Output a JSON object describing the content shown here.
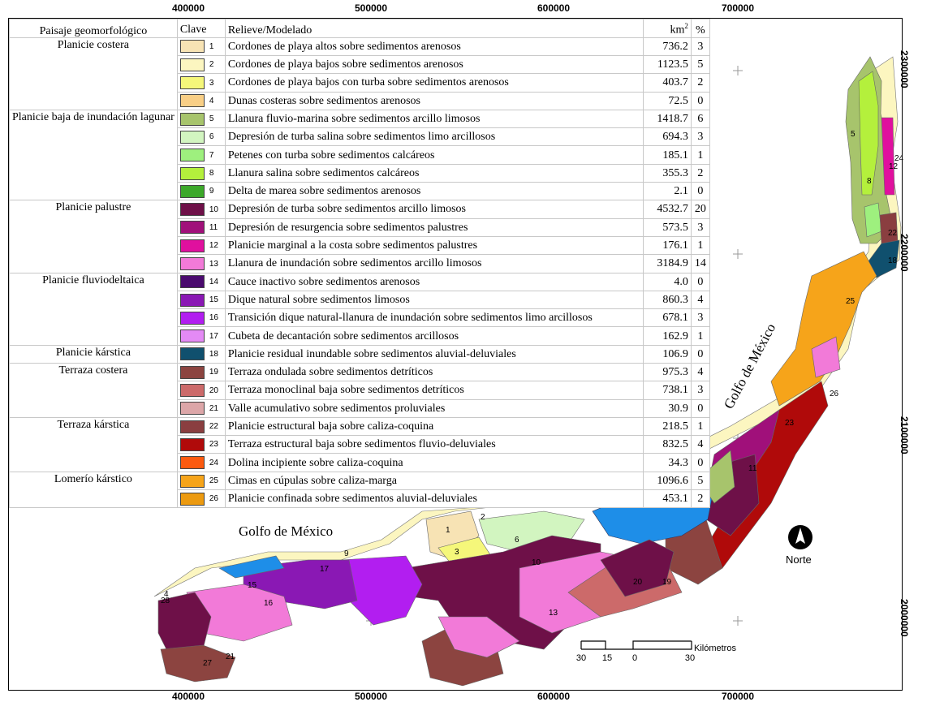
{
  "grid": {
    "x_labels": [
      "400000",
      "500000",
      "600000",
      "700000"
    ],
    "y_labels": [
      "2300000",
      "2200000",
      "2100000",
      "2000000"
    ]
  },
  "legend": {
    "headers": {
      "landscape": "Paisaje geomorfológico",
      "key": "Clave",
      "relief": "Relieve/Modelado",
      "area": "km",
      "area_sup": "2",
      "pct": "%"
    },
    "groups": [
      {
        "name": "Planicie costera",
        "rows": [
          {
            "key": "1",
            "relief": "Cordones de playa altos sobre sedimentos arenosos",
            "km2": "736.2",
            "pct": "3",
            "color": "#f7e3b4"
          },
          {
            "key": "2",
            "relief": "Cordones de playa bajos sobre sedimentos arenosos",
            "km2": "1123.5",
            "pct": "5",
            "color": "#fcf6c0"
          },
          {
            "key": "3",
            "relief": "Cordones de playa bajos con turba sobre sedimentos arenosos",
            "km2": "403.7",
            "pct": "2",
            "color": "#f5f77a"
          },
          {
            "key": "4",
            "relief": "Dunas costeras sobre sedimentos arenosos",
            "km2": "72.5",
            "pct": "0",
            "color": "#f9cf86"
          }
        ]
      },
      {
        "name": "Planicie baja de inundación lagunar",
        "rows": [
          {
            "key": "5",
            "relief": "Llanura fluvio-marina sobre sedimentos arcillo limosos",
            "km2": "1418.7",
            "pct": "6",
            "color": "#a7c46c"
          },
          {
            "key": "6",
            "relief": "Depresión de turba salina sobre sedimentos limo arcillosos",
            "km2": "694.3",
            "pct": "3",
            "color": "#d2f5c0"
          },
          {
            "key": "7",
            "relief": "Petenes con turba sobre sedimentos calcáreos",
            "km2": "185.1",
            "pct": "1",
            "color": "#9ef07e"
          },
          {
            "key": "8",
            "relief": "Llanura salina sobre sedimentos calcáreos",
            "km2": "355.3",
            "pct": "2",
            "color": "#b4f03c"
          },
          {
            "key": "9",
            "relief": "Delta de marea sobre sedimentos arenosos",
            "km2": "2.1",
            "pct": "0",
            "color": "#3ca82a"
          }
        ]
      },
      {
        "name": "Planicie palustre",
        "rows": [
          {
            "key": "10",
            "relief": "Depresión de turba sobre sedimentos arcillo limosos",
            "km2": "4532.7",
            "pct": "20",
            "color": "#6e1048"
          },
          {
            "key": "11",
            "relief": "Depresión de resurgencia sobre sedimentos palustres",
            "km2": "573.5",
            "pct": "3",
            "color": "#a0107a"
          },
          {
            "key": "12",
            "relief": "Planicie marginal a la costa sobre sedimentos palustres",
            "km2": "176.1",
            "pct": "1",
            "color": "#e0109e"
          },
          {
            "key": "13",
            "relief": "Llanura de inundación sobre sedimentos arcillo limosos",
            "km2": "3184.9",
            "pct": "14",
            "color": "#f27ad8"
          }
        ]
      },
      {
        "name": "Planicie fluviodeltaica",
        "rows": [
          {
            "key": "14",
            "relief": "Cauce inactivo sobre sedimentos arenosos",
            "km2": "4.0",
            "pct": "0",
            "color": "#4a0a6e"
          },
          {
            "key": "15",
            "relief": "Dique natural sobre sedimentos limosos",
            "km2": "860.3",
            "pct": "4",
            "color": "#8a18b4"
          },
          {
            "key": "16",
            "relief": "Transición dique natural-llanura de inundación sobre sedimentos limo arcillosos",
            "km2": "678.1",
            "pct": "3",
            "color": "#b21ef0"
          },
          {
            "key": "17",
            "relief": "Cubeta de decantación sobre sedimentos arcillosos",
            "km2": "162.9",
            "pct": "1",
            "color": "#e48af5"
          }
        ]
      },
      {
        "name": "Planicie kárstica",
        "rows": [
          {
            "key": "18",
            "relief": "Planicie residual inundable sobre sedimentos aluvial-deluviales",
            "km2": "106.9",
            "pct": "0",
            "color": "#10506e"
          }
        ]
      },
      {
        "name": "Terraza costera",
        "rows": [
          {
            "key": "19",
            "relief": "Terraza ondulada sobre sedimentos detríticos",
            "km2": "975.3",
            "pct": "4",
            "color": "#8c4440"
          },
          {
            "key": "20",
            "relief": "Terraza monoclinal baja sobre sedimentos detríticos",
            "km2": "738.1",
            "pct": "3",
            "color": "#cc6a6a"
          },
          {
            "key": "21",
            "relief": "Valle acumulativo sobre sedimentos proluviales",
            "km2": "30.9",
            "pct": "0",
            "color": "#dca6a8"
          }
        ]
      },
      {
        "name": "Terraza kárstica",
        "rows": [
          {
            "key": "22",
            "relief": "Planicie estructural baja sobre caliza-coquina",
            "km2": "218.5",
            "pct": "1",
            "color": "#8a3e40"
          },
          {
            "key": "23",
            "relief": "Terraza estructural baja sobre sedimentos fluvio-deluviales",
            "km2": "832.5",
            "pct": "4",
            "color": "#b00a0a"
          },
          {
            "key": "24",
            "relief": "Dolina incipiente sobre caliza-coquina",
            "km2": "34.3",
            "pct": "0",
            "color": "#fc5a10"
          }
        ]
      },
      {
        "name": "Lomerío kárstico",
        "rows": [
          {
            "key": "25",
            "relief": "Cimas en cúpulas sobre caliza-marga",
            "km2": "1096.6",
            "pct": "5",
            "color": "#f6a41a"
          },
          {
            "key": "26",
            "relief": "Planicie confinada sobre sedimentos aluvial-deluviales",
            "km2": "453.1",
            "pct": "2",
            "color": "#ec9a10"
          }
        ]
      }
    ]
  },
  "map": {
    "gulf_label_west": "Golfo de México",
    "gulf_label_east": "Golfo de México",
    "north_label": "Norte",
    "water_color": "#1e8ee8",
    "scale": {
      "unit": "Kilómetros",
      "labels": [
        "30",
        "15",
        "0",
        "30"
      ]
    },
    "unit_labels": [
      "1",
      "2",
      "3",
      "4",
      "5",
      "6",
      "8",
      "9",
      "10",
      "11",
      "12",
      "13",
      "15",
      "16",
      "17",
      "18",
      "19",
      "20",
      "21",
      "22",
      "23",
      "24",
      "25",
      "26",
      "27",
      "28"
    ]
  }
}
